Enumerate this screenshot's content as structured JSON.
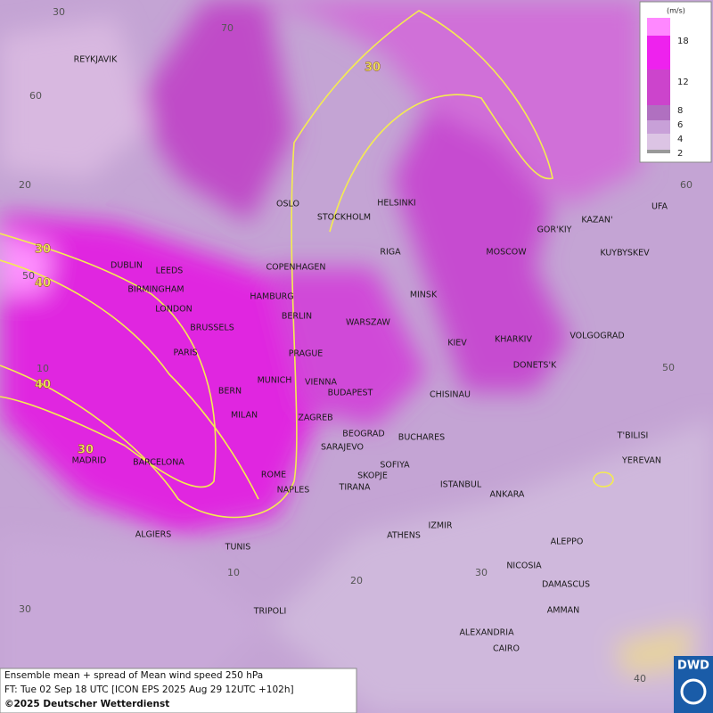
{
  "legend": {
    "unit": "(m/s)",
    "levels": [
      18,
      12,
      8,
      6,
      4,
      2
    ]
  },
  "grid_labels": [
    "30",
    "70",
    "60",
    "20",
    "50",
    "10",
    "30",
    "60",
    "50",
    "10",
    "20",
    "30",
    "40"
  ],
  "contour_labels": [
    "30",
    "30",
    "40",
    "40",
    "30"
  ],
  "cities": [
    "REYKJAVIK",
    "OSLO",
    "STOCKHOLM",
    "HELSINKI",
    "DUBLIN",
    "LEEDS",
    "COPENHAGEN",
    "RIGA",
    "MOSCOW",
    "GOR'KIY",
    "KAZAN'",
    "UFA",
    "KUYBYSKEV",
    "BIRMINGHAM",
    "HAMBURG",
    "MINSK",
    "LONDON",
    "BERLIN",
    "WARSZAW",
    "BRUSSELS",
    "VOLGOGRAD",
    "KIEV",
    "KHARKIV",
    "PARIS",
    "PRAGUE",
    "DONETS'K",
    "MUNICH",
    "VIENNA",
    "BERN",
    "BUDAPEST",
    "CHISINAU",
    "MILAN",
    "ZAGREB",
    "BEOGRAD",
    "BUCHARES",
    "T'BILISI",
    "SARAJEVO",
    "MADRID",
    "BARCELONA",
    "SOFIYA",
    "YEREVAN",
    "ROME",
    "SKOPJE",
    "ISTANBUL",
    "TIRANA",
    "NAPLES",
    "ANKARA",
    "IZMIR",
    "ALGIERS",
    "ATHENS",
    "ALEPPO",
    "TUNIS",
    "NICOSIA",
    "DAMASCUS",
    "AMMAN",
    "TRIPOLI",
    "ALEXANDRIA",
    "CAIRO"
  ],
  "footer": {
    "line1": "Ensemble mean + spread of Mean wind speed 250 hPa",
    "line2": "FT: Tue 02 Sep 18 UTC [ICON EPS 2025 Aug 29 12UTC +102h]",
    "line3": "©2025 Deutscher Wetterdienst"
  },
  "logo": "DWD"
}
